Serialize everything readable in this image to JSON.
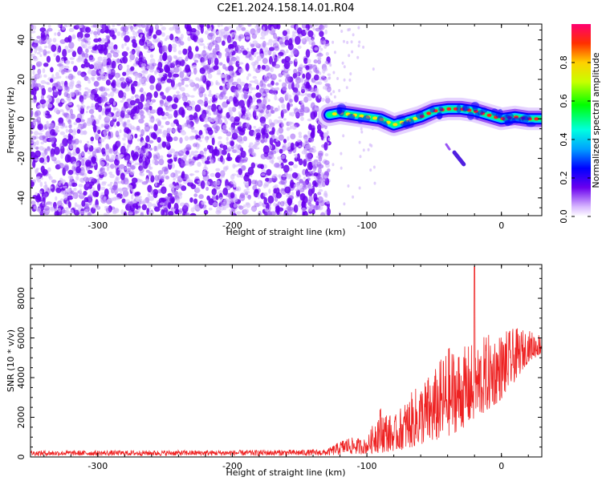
{
  "title": "C2E1.2024.158.14.01.R04",
  "colors": {
    "trace": "#ee2222",
    "purple": "#6a00ee",
    "frame": "#000000"
  },
  "chart_data": [
    {
      "type": "heatmap",
      "name": "spectrogram",
      "xlabel": "Height of straight line (km)",
      "ylabel": "Frequency (Hz)",
      "xlim": [
        -350,
        30
      ],
      "ylim": [
        -49,
        48
      ],
      "xticks": [
        -300,
        -200,
        -100,
        0
      ],
      "xtick_labels": [
        "-300",
        "-200",
        "-100",
        "0"
      ],
      "yticks": [
        -40,
        -20,
        0,
        20,
        40
      ],
      "ytick_labels": [
        "-40",
        "-20",
        "0",
        "20",
        "40"
      ],
      "noise_region_x": [
        -350,
        -128
      ],
      "signal_track": {
        "x": [
          -128,
          -120,
          -110,
          -100,
          -90,
          -80,
          -70,
          -60,
          -50,
          -40,
          -30,
          -20,
          -10,
          0,
          10,
          20,
          30
        ],
        "freq": [
          2,
          3,
          2,
          1,
          0,
          -3,
          -1,
          1,
          4,
          5,
          5,
          4,
          2,
          0,
          1,
          0,
          0
        ]
      },
      "branch": {
        "x": [
          -35,
          -28
        ],
        "freq": [
          -17,
          -23
        ]
      },
      "colorbar": {
        "label": "Normalized spectral amplitude",
        "range": [
          0.0,
          1.0
        ],
        "ticks": [
          0.0,
          0.2,
          0.4,
          0.6,
          0.8
        ],
        "tick_labels": [
          "0.0",
          "0.2",
          "0.4",
          "0.6",
          "0.8"
        ]
      }
    },
    {
      "type": "line",
      "name": "snr",
      "xlabel": "Height of straight line (km)",
      "ylabel": "SNR (10 * v/v)",
      "xlim": [
        -350,
        30
      ],
      "ylim": [
        0,
        9700
      ],
      "xticks": [
        -300,
        -200,
        -100,
        0
      ],
      "xtick_labels": [
        "-300",
        "-200",
        "-100",
        "0"
      ],
      "yticks": [
        0,
        2000,
        4000,
        6000,
        8000
      ],
      "ytick_labels": [
        "0",
        "2000",
        "4000",
        "6000",
        "8000"
      ],
      "envelope": {
        "x": [
          -350,
          -200,
          -130,
          -115,
          -100,
          -90,
          -80,
          -70,
          -60,
          -50,
          -40,
          -30,
          -20,
          -10,
          0,
          10,
          20,
          30
        ],
        "low": [
          60,
          60,
          60,
          100,
          150,
          200,
          300,
          400,
          600,
          700,
          1000,
          1400,
          1800,
          2300,
          2900,
          3800,
          4800,
          5200
        ],
        "high": [
          320,
          340,
          380,
          1000,
          900,
          2600,
          2000,
          3000,
          3800,
          4400,
          5600,
          5500,
          5800,
          6200,
          6300,
          6500,
          6400,
          6200
        ]
      },
      "spike": {
        "x": -20,
        "y": 9600
      }
    }
  ]
}
